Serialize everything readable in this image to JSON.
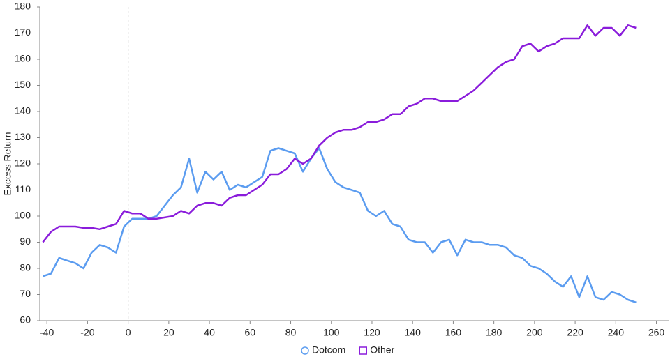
{
  "chart_data": {
    "type": "line",
    "y_label": "Excess Return",
    "x": [
      -42,
      -38,
      -34,
      -30,
      -26,
      -22,
      -18,
      -14,
      -10,
      -6,
      -2,
      2,
      6,
      10,
      14,
      18,
      22,
      26,
      30,
      34,
      38,
      42,
      46,
      50,
      54,
      58,
      62,
      66,
      70,
      74,
      78,
      82,
      86,
      90,
      94,
      98,
      102,
      106,
      110,
      114,
      118,
      122,
      126,
      130,
      134,
      138,
      142,
      146,
      150,
      154,
      158,
      162,
      166,
      170,
      174,
      178,
      182,
      186,
      190,
      194,
      198,
      202,
      206,
      210,
      214,
      218,
      222,
      226,
      230,
      234,
      238,
      242,
      246,
      250
    ],
    "series": [
      {
        "name": "Dotcom",
        "color": "#5b9cf0",
        "marker": "circle",
        "values": [
          77,
          78,
          84,
          83,
          82,
          80,
          86,
          89,
          88,
          86,
          96,
          99,
          99,
          99,
          100,
          104,
          108,
          111,
          122,
          109,
          117,
          114,
          117,
          110,
          112,
          111,
          113,
          115,
          125,
          126,
          125,
          124,
          117,
          122,
          126,
          118,
          113,
          111,
          110,
          109,
          102,
          100,
          102,
          97,
          96,
          91,
          90,
          90,
          86,
          90,
          91,
          85,
          91,
          90,
          90,
          89,
          89,
          88,
          85,
          84,
          81,
          80,
          78,
          75,
          73,
          77,
          69,
          77,
          69,
          68,
          71,
          70,
          68,
          67
        ]
      },
      {
        "name": "Other",
        "color": "#8a1cdb",
        "marker": "square",
        "values": [
          90,
          94,
          96,
          96,
          96,
          95.5,
          95.5,
          95,
          96,
          97,
          102,
          101,
          101,
          99,
          99,
          99.5,
          100,
          102,
          101,
          104,
          105,
          105,
          104,
          107,
          108,
          108,
          110,
          112,
          116,
          116,
          118,
          122,
          120,
          122,
          127,
          130,
          132,
          133,
          133,
          134,
          136,
          136,
          137,
          139,
          139,
          142,
          143,
          145,
          145,
          144,
          144,
          144,
          146,
          148,
          151,
          154,
          157,
          159,
          160,
          165,
          166,
          163,
          165,
          166,
          168,
          168,
          168,
          173,
          169,
          172,
          172,
          169,
          173,
          172
        ]
      }
    ],
    "xlim": [
      -43.5,
      266
    ],
    "xticks": [
      -40,
      -20,
      0,
      20,
      40,
      60,
      80,
      100,
      120,
      140,
      160,
      180,
      200,
      220,
      240,
      260
    ],
    "ylim": [
      60,
      180
    ],
    "yticks": [
      60,
      70,
      80,
      90,
      100,
      110,
      120,
      130,
      140,
      150,
      160,
      170,
      180
    ],
    "vline": 0,
    "grid": false
  }
}
